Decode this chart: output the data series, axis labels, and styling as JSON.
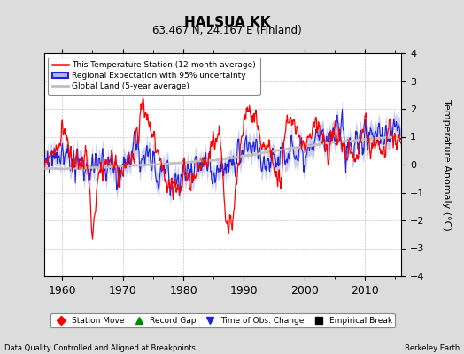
{
  "title": "HALSUA KK",
  "subtitle": "63.467 N, 24.167 E (Finland)",
  "ylabel": "Temperature Anomaly (°C)",
  "xlabel_left": "Data Quality Controlled and Aligned at Breakpoints",
  "xlabel_right": "Berkeley Earth",
  "ylim": [
    -4,
    4
  ],
  "xlim": [
    1957,
    2016
  ],
  "yticks": [
    -4,
    -3,
    -2,
    -1,
    0,
    1,
    2,
    3,
    4
  ],
  "xticks": [
    1960,
    1970,
    1980,
    1990,
    2000,
    2010
  ],
  "background_color": "#dcdcdc",
  "plot_bg_color": "#ffffff",
  "grid_color": "#aaaaaa",
  "station_color": "#ff0000",
  "regional_color": "#2222dd",
  "regional_fill_color": "#b0b8f0",
  "global_color": "#c0c0c0",
  "legend_items": [
    "This Temperature Station (12-month average)",
    "Regional Expectation with 95% uncertainty",
    "Global Land (5-year average)"
  ],
  "bottom_legend": [
    {
      "label": "Station Move",
      "color": "#ff0000",
      "marker": "D"
    },
    {
      "label": "Record Gap",
      "color": "#008800",
      "marker": "^"
    },
    {
      "label": "Time of Obs. Change",
      "color": "#2222dd",
      "marker": "v"
    },
    {
      "label": "Empirical Break",
      "color": "#000000",
      "marker": "s"
    }
  ]
}
